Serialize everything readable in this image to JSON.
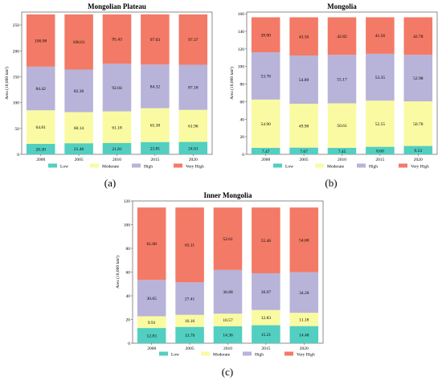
{
  "colors": {
    "Low": "#52cfc0",
    "Moderate": "#fafaa2",
    "High": "#b8b3d9",
    "Very High": "#f37a66"
  },
  "chart_data": [
    {
      "type": "bar",
      "stacked": true,
      "panel_letter": "(a)",
      "title": "Mongolian Plateau",
      "ylabel": "Area (10,000 km²)",
      "xlabel": "",
      "categories": [
        "2000",
        "2005",
        "2010",
        "2015",
        "2020"
      ],
      "ylim": [
        0,
        275
      ],
      "yticks": [
        0,
        50,
        100,
        150,
        200,
        250
      ],
      "grid": false,
      "legend": "bottom",
      "series": [
        {
          "name": "Low",
          "values": [
            20.3,
            21.46,
            21.81,
            23.81,
            24.01
          ],
          "labels": [
            "20.30",
            "21.46",
            "21.81",
            "23.81",
            "24.01"
          ]
        },
        {
          "name": "Moderate",
          "values": [
            64.81,
            60.14,
            61.18,
            65.38,
            61.96
          ],
          "labels": [
            "64.81",
            "60.14",
            "61.18",
            "65.38",
            "61.96"
          ]
        },
        {
          "name": "High",
          "values": [
            84.42,
            82.3,
            92.04,
            84.32,
            87.18
          ],
          "labels": [
            "84.42",
            "82.30",
            "92.04",
            "84.32",
            "87.18"
          ]
        },
        {
          "name": "Very High",
          "values": [
            100.98,
            106.61,
            95.43,
            97.03,
            97.37
          ],
          "labels": [
            "100.98",
            "106.61",
            "95.43",
            "97.03",
            "97.37"
          ]
        }
      ]
    },
    {
      "type": "bar",
      "stacked": true,
      "panel_letter": "(b)",
      "title": "Mongolia",
      "ylabel": "Area (10,000 km²)",
      "xlabel": "",
      "categories": [
        "2000",
        "2005",
        "2010",
        "2015",
        "2020"
      ],
      "ylim": [
        0,
        162
      ],
      "yticks": [
        0,
        20,
        40,
        60,
        80,
        100,
        120,
        140,
        160
      ],
      "grid": false,
      "legend": "bottom",
      "series": [
        {
          "name": "Low",
          "values": [
            7.47,
            7.67,
            7.45,
            8.6,
            9.53
          ],
          "labels": [
            "7.47",
            "7.67",
            "7.45",
            "8.60",
            "9.53"
          ]
        },
        {
          "name": "Moderate",
          "values": [
            54.9,
            49.98,
            50.61,
            52.55,
            50.78
          ],
          "labels": [
            "54.90",
            "49.98",
            "50.61",
            "52.55",
            "50.78"
          ]
        },
        {
          "name": "High",
          "values": [
            53.78,
            54.89,
            55.17,
            53.35,
            52.98
          ],
          "labels": [
            "53.78",
            "54.89",
            "55.17",
            "53.35",
            "52.98"
          ]
        },
        {
          "name": "Very High",
          "values": [
            39.9,
            43.5,
            42.82,
            41.56,
            42.78
          ],
          "labels": [
            "39.90",
            "43.50",
            "42.82",
            "41.56",
            "42.78"
          ]
        }
      ]
    },
    {
      "type": "bar",
      "stacked": true,
      "panel_letter": "(c)",
      "title": "Inner Mongolia",
      "ylabel": "Area (10,000 km²)",
      "xlabel": "",
      "categories": [
        "2000",
        "2005",
        "2010",
        "2015",
        "2020"
      ],
      "ylim": [
        0,
        120
      ],
      "yticks": [
        0,
        20,
        40,
        60,
        80,
        100,
        120
      ],
      "grid": false,
      "legend": "bottom",
      "series": [
        {
          "name": "Low",
          "values": [
            12.83,
            13.79,
            14.36,
            15.21,
            14.48
          ],
          "labels": [
            "12.83",
            "13.79",
            "14.36",
            "15.21",
            "14.48"
          ]
        },
        {
          "name": "Moderate",
          "values": [
            9.91,
            10.16,
            10.57,
            12.83,
            11.18
          ],
          "labels": [
            "9.91",
            "10.16",
            "10.57",
            "12.83",
            "11.18"
          ]
        },
        {
          "name": "High",
          "values": [
            30.65,
            27.41,
            36.88,
            30.97,
            34.2
          ],
          "labels": [
            "30.65",
            "27.41",
            "36.88",
            "30.97",
            "34.20"
          ]
        },
        {
          "name": "Very High",
          "values": [
            61.08,
            63.11,
            52.61,
            55.46,
            54.6
          ],
          "labels": [
            "61.08",
            "63.11",
            "52.61",
            "55.46",
            "54.60"
          ]
        }
      ]
    }
  ]
}
